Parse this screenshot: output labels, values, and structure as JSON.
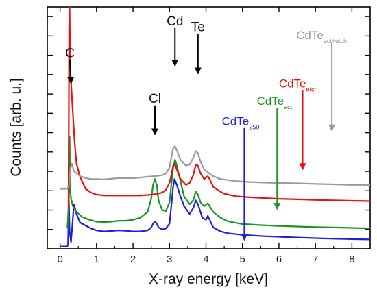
{
  "chart_data": {
    "type": "line",
    "xlabel": "X-ray energy [keV]",
    "ylabel": "Counts [arb. u.]",
    "xlim": [
      -0.35,
      8.5
    ],
    "ylim": [
      0,
      12.5
    ],
    "xticks": [
      0,
      1,
      2,
      3,
      4,
      5,
      6,
      7,
      8
    ],
    "y_ticks_labeled": false,
    "grid": false,
    "series": [
      {
        "name": "CdTe",
        "subscript": "250",
        "color": "#1f1fdc",
        "points": [
          [
            0.0,
            0.12
          ],
          [
            0.2,
            0.12
          ],
          [
            0.22,
            0.25
          ],
          [
            0.24,
            2.6
          ],
          [
            0.26,
            0.9
          ],
          [
            0.3,
            0.35
          ],
          [
            0.38,
            2.3
          ],
          [
            0.45,
            1.8
          ],
          [
            0.55,
            1.35
          ],
          [
            0.7,
            1.2
          ],
          [
            0.85,
            1.05
          ],
          [
            1.0,
            0.95
          ],
          [
            1.2,
            0.9
          ],
          [
            1.4,
            0.92
          ],
          [
            1.6,
            0.95
          ],
          [
            1.8,
            0.93
          ],
          [
            2.0,
            0.9
          ],
          [
            2.2,
            0.9
          ],
          [
            2.4,
            0.95
          ],
          [
            2.5,
            1.1
          ],
          [
            2.55,
            1.3
          ],
          [
            2.6,
            1.4
          ],
          [
            2.65,
            1.3
          ],
          [
            2.7,
            1.1
          ],
          [
            2.8,
            1.0
          ],
          [
            2.9,
            1.05
          ],
          [
            3.0,
            1.3
          ],
          [
            3.05,
            2.2
          ],
          [
            3.1,
            3.2
          ],
          [
            3.14,
            3.6
          ],
          [
            3.2,
            3.3
          ],
          [
            3.3,
            2.7
          ],
          [
            3.4,
            2.2
          ],
          [
            3.55,
            1.8
          ],
          [
            3.65,
            2.1
          ],
          [
            3.72,
            2.5
          ],
          [
            3.78,
            2.3
          ],
          [
            3.85,
            1.9
          ],
          [
            3.9,
            1.6
          ],
          [
            4.0,
            1.5
          ],
          [
            4.05,
            1.7
          ],
          [
            4.1,
            1.5
          ],
          [
            4.2,
            1.1
          ],
          [
            4.4,
            0.9
          ],
          [
            4.6,
            0.8
          ],
          [
            5.0,
            0.72
          ],
          [
            5.5,
            0.66
          ],
          [
            6.0,
            0.62
          ],
          [
            6.5,
            0.58
          ],
          [
            7.0,
            0.55
          ],
          [
            7.5,
            0.52
          ],
          [
            8.0,
            0.5
          ],
          [
            8.5,
            0.48
          ]
        ]
      },
      {
        "name": "CdTe",
        "subscript": "act",
        "color": "#1a9424",
        "points": [
          [
            0.2,
            1.05
          ],
          [
            0.24,
            2.4
          ],
          [
            0.26,
            5.8
          ],
          [
            0.28,
            3.0
          ],
          [
            0.3,
            2.6
          ],
          [
            0.35,
            2.2
          ],
          [
            0.45,
            1.9
          ],
          [
            0.6,
            1.65
          ],
          [
            0.8,
            1.5
          ],
          [
            1.0,
            1.4
          ],
          [
            1.2,
            1.38
          ],
          [
            1.4,
            1.4
          ],
          [
            1.6,
            1.45
          ],
          [
            1.8,
            1.45
          ],
          [
            2.0,
            1.5
          ],
          [
            2.2,
            1.6
          ],
          [
            2.4,
            1.9
          ],
          [
            2.5,
            2.6
          ],
          [
            2.55,
            3.3
          ],
          [
            2.6,
            3.6
          ],
          [
            2.65,
            3.3
          ],
          [
            2.7,
            2.5
          ],
          [
            2.8,
            2.0
          ],
          [
            2.9,
            1.95
          ],
          [
            3.0,
            2.4
          ],
          [
            3.05,
            3.3
          ],
          [
            3.1,
            4.2
          ],
          [
            3.15,
            4.6
          ],
          [
            3.2,
            4.3
          ],
          [
            3.3,
            3.5
          ],
          [
            3.4,
            2.7
          ],
          [
            3.55,
            2.3
          ],
          [
            3.65,
            2.5
          ],
          [
            3.72,
            2.95
          ],
          [
            3.78,
            2.8
          ],
          [
            3.85,
            2.4
          ],
          [
            3.95,
            2.2
          ],
          [
            4.05,
            2.35
          ],
          [
            4.1,
            2.2
          ],
          [
            4.2,
            1.9
          ],
          [
            4.4,
            1.6
          ],
          [
            4.6,
            1.42
          ],
          [
            5.0,
            1.28
          ],
          [
            5.5,
            1.22
          ],
          [
            6.0,
            1.18
          ],
          [
            6.5,
            1.15
          ],
          [
            7.0,
            1.12
          ],
          [
            7.5,
            1.1
          ],
          [
            8.0,
            1.08
          ],
          [
            8.5,
            1.06
          ]
        ]
      },
      {
        "name": "CdTe",
        "subscript": "etch",
        "color": "#e81010",
        "points": [
          [
            0.23,
            2.05
          ],
          [
            0.25,
            11.5
          ],
          [
            0.26,
            12.5
          ],
          [
            0.28,
            9.0
          ],
          [
            0.3,
            8.6
          ],
          [
            0.35,
            7.0
          ],
          [
            0.4,
            5.5
          ],
          [
            0.45,
            4.4
          ],
          [
            0.55,
            3.7
          ],
          [
            0.7,
            3.1
          ],
          [
            0.85,
            2.9
          ],
          [
            1.0,
            2.8
          ],
          [
            1.2,
            2.75
          ],
          [
            1.4,
            2.75
          ],
          [
            1.6,
            2.75
          ],
          [
            1.8,
            2.75
          ],
          [
            2.0,
            2.75
          ],
          [
            2.2,
            2.75
          ],
          [
            2.4,
            2.78
          ],
          [
            2.6,
            2.82
          ],
          [
            2.8,
            2.9
          ],
          [
            2.9,
            3.05
          ],
          [
            3.0,
            3.4
          ],
          [
            3.05,
            3.8
          ],
          [
            3.1,
            4.3
          ],
          [
            3.15,
            4.35
          ],
          [
            3.22,
            4.0
          ],
          [
            3.3,
            3.6
          ],
          [
            3.45,
            3.3
          ],
          [
            3.55,
            3.4
          ],
          [
            3.65,
            3.8
          ],
          [
            3.72,
            4.35
          ],
          [
            3.78,
            4.3
          ],
          [
            3.85,
            3.9
          ],
          [
            3.95,
            3.6
          ],
          [
            4.05,
            3.75
          ],
          [
            4.1,
            3.6
          ],
          [
            4.2,
            3.2
          ],
          [
            4.35,
            3.0
          ],
          [
            4.5,
            2.85
          ],
          [
            4.8,
            2.72
          ],
          [
            5.2,
            2.66
          ],
          [
            5.6,
            2.62
          ],
          [
            6.0,
            2.58
          ],
          [
            6.6,
            2.55
          ],
          [
            7.0,
            2.52
          ],
          [
            7.5,
            2.5
          ],
          [
            8.0,
            2.48
          ],
          [
            8.5,
            2.46
          ]
        ]
      },
      {
        "name": "CdTe",
        "subscript": "act+etch",
        "color": "#9a9a9a",
        "points": [
          [
            0.0,
            3.1
          ],
          [
            0.2,
            3.1
          ],
          [
            0.25,
            3.3
          ],
          [
            0.28,
            4.1
          ],
          [
            0.32,
            4.4
          ],
          [
            0.38,
            4.0
          ],
          [
            0.45,
            3.9
          ],
          [
            0.55,
            3.75
          ],
          [
            0.7,
            3.65
          ],
          [
            0.85,
            3.6
          ],
          [
            1.0,
            3.6
          ],
          [
            1.2,
            3.58
          ],
          [
            1.4,
            3.62
          ],
          [
            1.6,
            3.65
          ],
          [
            1.8,
            3.65
          ],
          [
            2.0,
            3.65
          ],
          [
            2.2,
            3.68
          ],
          [
            2.4,
            3.72
          ],
          [
            2.6,
            3.75
          ],
          [
            2.8,
            3.8
          ],
          [
            2.9,
            3.9
          ],
          [
            3.0,
            4.2
          ],
          [
            3.05,
            4.7
          ],
          [
            3.1,
            5.2
          ],
          [
            3.15,
            5.3
          ],
          [
            3.22,
            5.0
          ],
          [
            3.3,
            4.6
          ],
          [
            3.45,
            4.3
          ],
          [
            3.55,
            4.35
          ],
          [
            3.65,
            4.7
          ],
          [
            3.72,
            5.05
          ],
          [
            3.78,
            4.95
          ],
          [
            3.85,
            4.5
          ],
          [
            3.95,
            4.1
          ],
          [
            4.05,
            3.95
          ],
          [
            4.2,
            3.75
          ],
          [
            4.4,
            3.6
          ],
          [
            4.8,
            3.5
          ],
          [
            5.2,
            3.45
          ],
          [
            5.6,
            3.42
          ],
          [
            6.0,
            3.4
          ],
          [
            6.5,
            3.38
          ],
          [
            7.0,
            3.35
          ],
          [
            7.5,
            3.33
          ],
          [
            8.0,
            3.3
          ],
          [
            8.5,
            3.3
          ]
        ]
      }
    ],
    "peak_labels": [
      {
        "text": "C",
        "x": 0.27,
        "y": 9.9,
        "arrow_to": [
          0.3,
          8.55
        ]
      },
      {
        "text": "Cl",
        "x": 2.6,
        "y": 7.55,
        "arrow_to": [
          2.6,
          5.9
        ]
      },
      {
        "text": "Cd",
        "x": 3.15,
        "y": 11.55,
        "arrow_to": [
          3.15,
          9.45
        ]
      },
      {
        "text": "Te",
        "x": 3.78,
        "y": 11.25,
        "arrow_to": [
          3.78,
          9.05
        ]
      }
    ],
    "series_annotations": [
      {
        "series": 3,
        "arrow_x": 7.45,
        "top": 10.55,
        "bottom": 6.1
      },
      {
        "series": 2,
        "arrow_x": 6.65,
        "top": 8.05,
        "bottom": 4.1
      },
      {
        "series": 1,
        "arrow_x": 5.95,
        "top": 7.15,
        "bottom": 2.05
      },
      {
        "series": 0,
        "arrow_x": 5.05,
        "top": 6.1,
        "bottom": 0.45
      }
    ]
  }
}
